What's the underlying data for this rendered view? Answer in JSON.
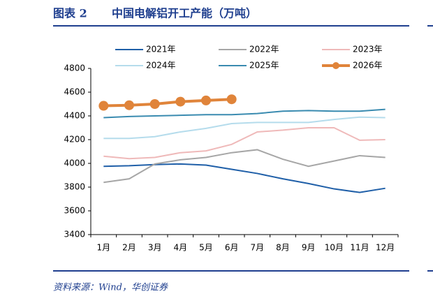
{
  "figure_label": "图表 2",
  "source": "资料来源：Wind，华创证券",
  "chart_data": {
    "type": "line",
    "title": "中国电解铝开工产能（万吨）",
    "categories": [
      "1月",
      "2月",
      "3月",
      "4月",
      "5月",
      "6月",
      "7月",
      "8月",
      "9月",
      "10月",
      "11月",
      "12月"
    ],
    "ylim": [
      3400,
      4800
    ],
    "yticks": [
      3400,
      3600,
      3800,
      4000,
      4200,
      4400,
      4600,
      4800
    ],
    "series": [
      {
        "name": "2021年",
        "color": "#1f5fa8",
        "values": [
          3975,
          3980,
          3990,
          3995,
          3985,
          3950,
          3915,
          3870,
          3830,
          3785,
          3755,
          3790
        ]
      },
      {
        "name": "2022年",
        "color": "#a6a6a6",
        "values": [
          3840,
          3870,
          3995,
          4030,
          4050,
          4090,
          4115,
          4035,
          3975,
          4020,
          4065,
          4050
        ]
      },
      {
        "name": "2023年",
        "color": "#efb9b9",
        "values": [
          4060,
          4040,
          4050,
          4090,
          4105,
          4160,
          4265,
          4280,
          4300,
          4300,
          4195,
          4200
        ]
      },
      {
        "name": "2024年",
        "color": "#b5dcec",
        "values": [
          4210,
          4210,
          4225,
          4265,
          4295,
          4335,
          4345,
          4345,
          4345,
          4370,
          4390,
          4385
        ]
      },
      {
        "name": "2025年",
        "color": "#3a8bb0",
        "values": [
          4385,
          4395,
          4400,
          4405,
          4410,
          4410,
          4420,
          4440,
          4445,
          4440,
          4440,
          4455
        ]
      },
      {
        "name": "2026年",
        "color": "#e0843a",
        "markers": true,
        "values": [
          4485,
          4490,
          4500,
          4520,
          4530,
          4540,
          null,
          null,
          null,
          null,
          null,
          null
        ]
      }
    ]
  }
}
